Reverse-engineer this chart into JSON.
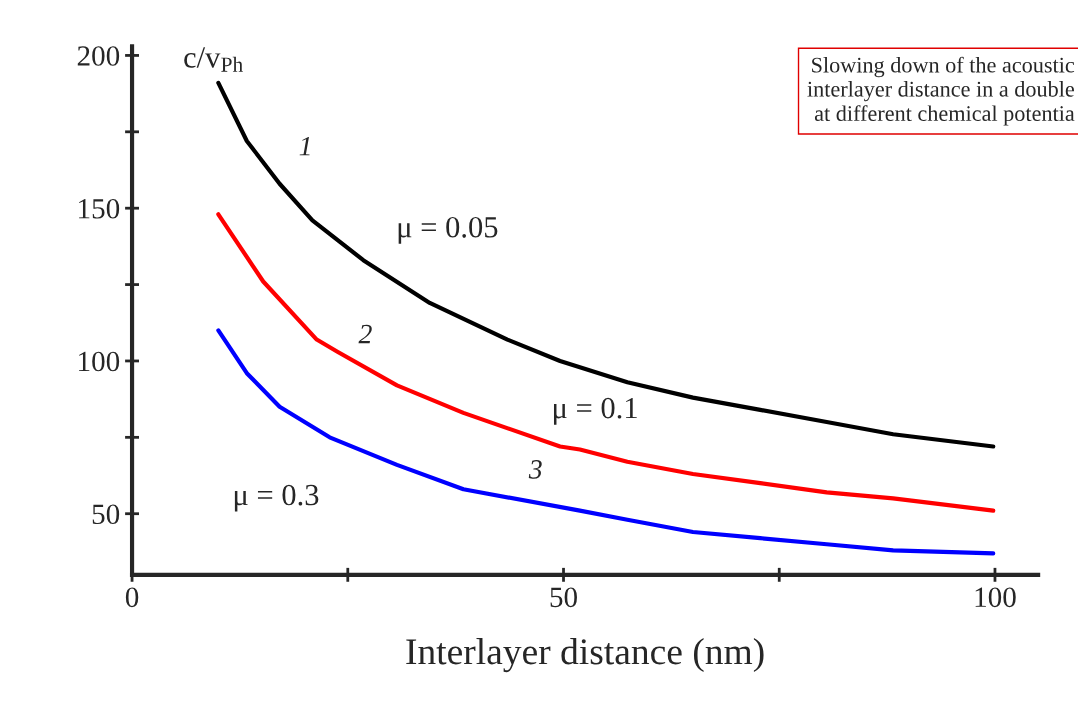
{
  "chart_data": {
    "type": "line",
    "xlabel": "Interlayer distance (nm)",
    "ylabel": "c/v$_{Ph}$",
    "xlim": [
      0,
      105
    ],
    "ylim": [
      30,
      203
    ],
    "xticks": [
      0,
      {
        "value": 25,
        "label": null
      },
      50,
      {
        "value": 75,
        "label": null
      },
      100
    ],
    "yticks": [
      50,
      {
        "value": 75,
        "label": null
      },
      100,
      {
        "value": 125,
        "label": null
      },
      150,
      {
        "value": 175,
        "label": null
      },
      200
    ],
    "grid": false,
    "marker": "none",
    "line_style": "solid",
    "series": [
      {
        "color": "#000000",
        "x": [
          10,
          13.3,
          17.1,
          20.9,
          26.8,
          34.5,
          43.5,
          49.6,
          57.4,
          65.0,
          72.8,
          80.5,
          88.2,
          99.8
        ],
        "values": [
          191,
          172,
          158,
          146,
          133,
          119,
          107,
          100,
          93,
          88,
          84,
          80,
          76,
          72
        ]
      },
      {
        "color": "#ff0000",
        "x": [
          10,
          15.2,
          21.4,
          23.8,
          30.7,
          38.4,
          49.6,
          51.9,
          57.4,
          65.0,
          72.8,
          80.5,
          88.2,
          99.8
        ],
        "values": [
          148,
          126,
          107,
          103,
          92,
          83,
          72,
          71,
          67,
          63,
          60,
          57,
          55,
          51
        ]
      },
      {
        "color": "#0000ff",
        "x": [
          10,
          13.3,
          17.1,
          22.9,
          30.7,
          38.4,
          51.9,
          57.4,
          65.0,
          72.8,
          80.5,
          88.2,
          99.8
        ],
        "values": [
          110,
          96,
          85,
          75,
          66,
          58,
          51,
          48,
          44,
          42,
          40,
          38,
          37
        ]
      }
    ],
    "annotations": [
      "1",
      "μ = 0.05",
      "2",
      "μ = 0.1",
      "3",
      "μ = 0.3",
      "Slowing down of the acoustic\ninterlayer distance in a double\nat different chemical potentia"
    ]
  }
}
